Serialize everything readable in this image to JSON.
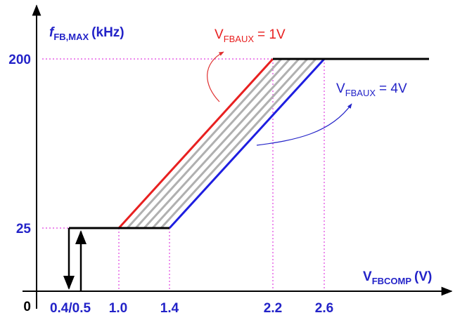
{
  "y_axis_label": {
    "symbol": "f",
    "subscript": "FB,MAX",
    "unit": "(kHz)"
  },
  "x_axis_label": {
    "symbol": "V",
    "subscript": "FBCOMP",
    "unit": "(V)"
  },
  "y_ticks": [
    "200",
    "25"
  ],
  "origin": "0",
  "x_ticks": [
    "0.4/0.5",
    "1.0",
    "1.4",
    "2.2",
    "2.6"
  ],
  "annotations": [
    {
      "symbol": "V",
      "subscript": "FBAUX",
      "text": "= 1V"
    },
    {
      "symbol": "V",
      "subscript": "FBAUX",
      "text": "= 4V"
    }
  ]
}
